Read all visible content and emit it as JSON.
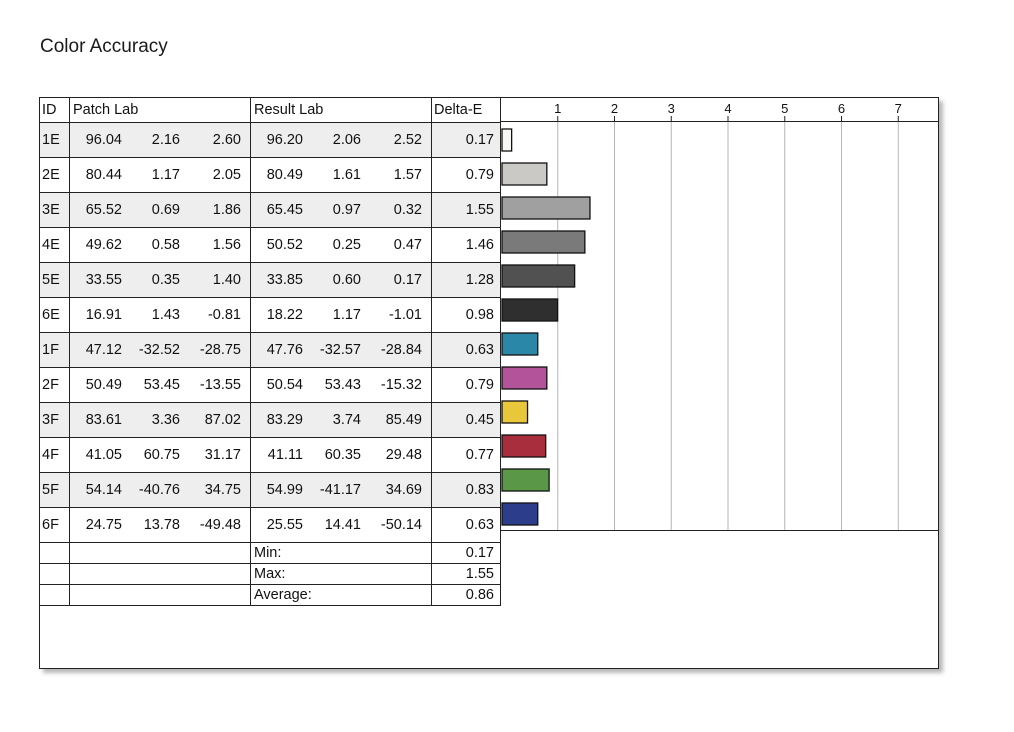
{
  "title": "Color Accuracy",
  "table": {
    "headers": {
      "id": "ID",
      "patch": "Patch Lab",
      "result": "Result Lab",
      "delta": "Delta-E"
    },
    "rows": [
      {
        "id": "1E",
        "patch": [
          "96.04",
          "2.16",
          "2.60"
        ],
        "result": [
          "96.20",
          "2.06",
          "2.52"
        ],
        "delta": "0.17"
      },
      {
        "id": "2E",
        "patch": [
          "80.44",
          "1.17",
          "2.05"
        ],
        "result": [
          "80.49",
          "1.61",
          "1.57"
        ],
        "delta": "0.79"
      },
      {
        "id": "3E",
        "patch": [
          "65.52",
          "0.69",
          "1.86"
        ],
        "result": [
          "65.45",
          "0.97",
          "0.32"
        ],
        "delta": "1.55"
      },
      {
        "id": "4E",
        "patch": [
          "49.62",
          "0.58",
          "1.56"
        ],
        "result": [
          "50.52",
          "0.25",
          "0.47"
        ],
        "delta": "1.46"
      },
      {
        "id": "5E",
        "patch": [
          "33.55",
          "0.35",
          "1.40"
        ],
        "result": [
          "33.85",
          "0.60",
          "0.17"
        ],
        "delta": "1.28"
      },
      {
        "id": "6E",
        "patch": [
          "16.91",
          "1.43",
          "-0.81"
        ],
        "result": [
          "18.22",
          "1.17",
          "-1.01"
        ],
        "delta": "0.98"
      },
      {
        "id": "1F",
        "patch": [
          "47.12",
          "-32.52",
          "-28.75"
        ],
        "result": [
          "47.76",
          "-32.57",
          "-28.84"
        ],
        "delta": "0.63"
      },
      {
        "id": "2F",
        "patch": [
          "50.49",
          "53.45",
          "-13.55"
        ],
        "result": [
          "50.54",
          "53.43",
          "-15.32"
        ],
        "delta": "0.79"
      },
      {
        "id": "3F",
        "patch": [
          "83.61",
          "3.36",
          "87.02"
        ],
        "result": [
          "83.29",
          "3.74",
          "85.49"
        ],
        "delta": "0.45"
      },
      {
        "id": "4F",
        "patch": [
          "41.05",
          "60.75",
          "31.17"
        ],
        "result": [
          "41.11",
          "60.35",
          "29.48"
        ],
        "delta": "0.77"
      },
      {
        "id": "5F",
        "patch": [
          "54.14",
          "-40.76",
          "34.75"
        ],
        "result": [
          "54.99",
          "-41.17",
          "34.69"
        ],
        "delta": "0.83"
      },
      {
        "id": "6F",
        "patch": [
          "24.75",
          "13.78",
          "-49.48"
        ],
        "result": [
          "25.55",
          "14.41",
          "-50.14"
        ],
        "delta": "0.63"
      }
    ],
    "summary": [
      {
        "label": "Min:",
        "value": "0.17"
      },
      {
        "label": "Max:",
        "value": "1.55"
      },
      {
        "label": "Average:",
        "value": "0.86"
      }
    ]
  },
  "chart_data": {
    "type": "bar",
    "orientation": "horizontal",
    "categories": [
      "1E",
      "2E",
      "3E",
      "4E",
      "5E",
      "6E",
      "1F",
      "2F",
      "3F",
      "4F",
      "5F",
      "6F"
    ],
    "values": [
      0.17,
      0.79,
      1.55,
      1.46,
      1.28,
      0.98,
      0.63,
      0.79,
      0.45,
      0.77,
      0.83,
      0.63
    ],
    "colors": [
      "#f7f7f5",
      "#cbc9c5",
      "#a0a0a0",
      "#7a7a7a",
      "#515151",
      "#2f2f2f",
      "#2b87a8",
      "#b3539a",
      "#e8c73a",
      "#a92e3d",
      "#5a9848",
      "#2c3d8c"
    ],
    "xticks": [
      1,
      2,
      3,
      4,
      5,
      6,
      7
    ],
    "xlim": [
      0,
      7.7
    ],
    "grid": true
  }
}
